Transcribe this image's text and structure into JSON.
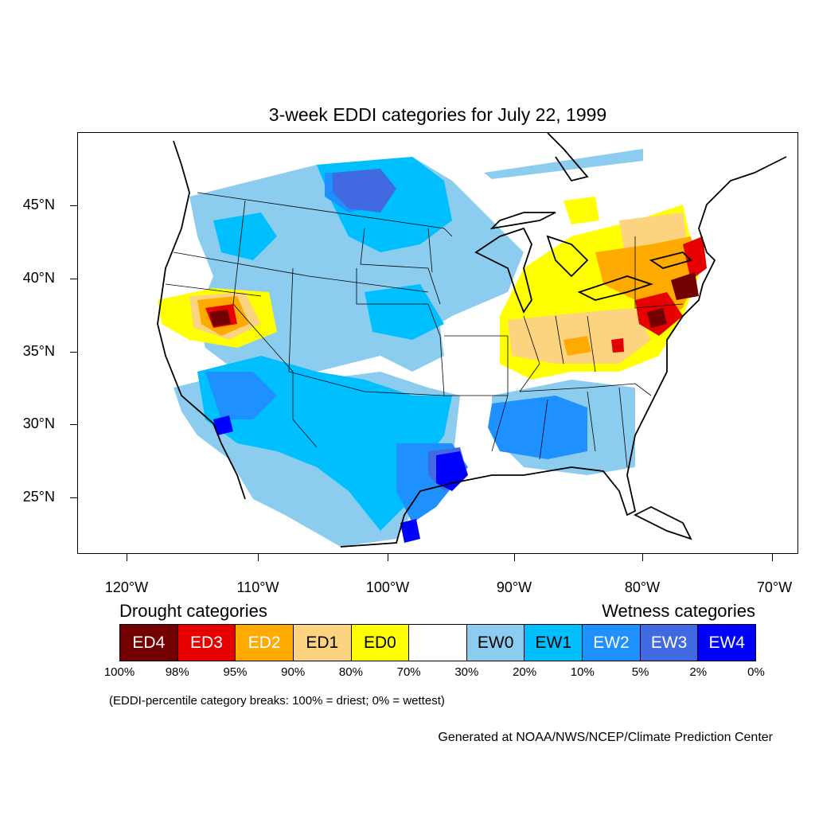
{
  "title": "3-week EDDI categories for July 22, 1999",
  "map": {
    "lat_labels": [
      "45°N",
      "40°N",
      "35°N",
      "30°N",
      "25°N"
    ],
    "lon_labels": [
      "120°W",
      "110°W",
      "100°W",
      "90°W",
      "80°W",
      "70°W"
    ]
  },
  "legend": {
    "drought_heading": "Drought categories",
    "wetness_heading": "Wetness categories",
    "categories": [
      {
        "label": "ED4",
        "color": "#730000",
        "text_color": "#ffffff"
      },
      {
        "label": "ED3",
        "color": "#e60000",
        "text_color": "#ffffff"
      },
      {
        "label": "ED2",
        "color": "#ffaa00",
        "text_color": "#ffffff"
      },
      {
        "label": "ED1",
        "color": "#fcd37f",
        "text_color": "#000000"
      },
      {
        "label": "ED0",
        "color": "#ffff00",
        "text_color": "#000000"
      },
      {
        "label": "",
        "color": "#ffffff",
        "text_color": "#000000"
      },
      {
        "label": "EW0",
        "color": "#8ccdef",
        "text_color": "#000000"
      },
      {
        "label": "EW1",
        "color": "#00bfff",
        "text_color": "#000000"
      },
      {
        "label": "EW2",
        "color": "#1e90ff",
        "text_color": "#ffffff"
      },
      {
        "label": "EW3",
        "color": "#4169e1",
        "text_color": "#ffffff"
      },
      {
        "label": "EW4",
        "color": "#0000ff",
        "text_color": "#ffffff"
      }
    ],
    "breaks": [
      "100%",
      "98%",
      "95%",
      "90%",
      "80%",
      "70%",
      "30%",
      "20%",
      "10%",
      "5%",
      "2%",
      "0%"
    ],
    "note": "(EDDI-percentile category breaks: 100% = driest; 0% = wettest)"
  },
  "credit": "Generated at NOAA/NWS/NCEP/Climate Prediction Center"
}
